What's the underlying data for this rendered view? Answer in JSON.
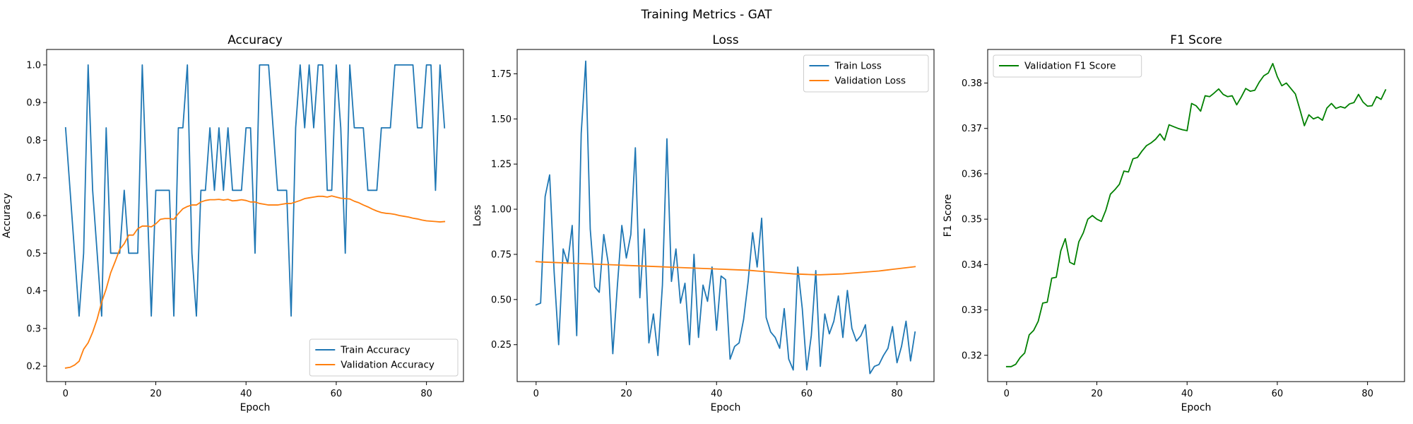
{
  "figure": {
    "title": "Training Metrics - GAT"
  },
  "chart_data": [
    {
      "type": "line",
      "title": "Accuracy",
      "xlabel": "Epoch",
      "ylabel": "Accuracy",
      "xlim": [
        -4.2,
        88.2
      ],
      "ylim": [
        0.159,
        1.041
      ],
      "xticks": [
        0,
        20,
        40,
        60,
        80
      ],
      "yticks": [
        0.2,
        0.3,
        0.4,
        0.5,
        0.6,
        0.7,
        0.8,
        0.9,
        1.0
      ],
      "ytick_labels": [
        "0.2",
        "0.3",
        "0.4",
        "0.5",
        "0.6",
        "0.7",
        "0.8",
        "0.9",
        "1.0"
      ],
      "legend_position": "lower right",
      "series": [
        {
          "name": "Train Accuracy",
          "color": "#1f77b4",
          "values": [
            0.833,
            0.667,
            0.5,
            0.333,
            0.5,
            1.0,
            0.667,
            0.5,
            0.333,
            0.833,
            0.5,
            0.5,
            0.5,
            0.667,
            0.5,
            0.5,
            0.5,
            1.0,
            0.667,
            0.333,
            0.667,
            0.667,
            0.667,
            0.667,
            0.333,
            0.833,
            0.833,
            1.0,
            0.5,
            0.333,
            0.667,
            0.667,
            0.833,
            0.667,
            0.833,
            0.667,
            0.833,
            0.667,
            0.667,
            0.667,
            0.833,
            0.833,
            0.5,
            1.0,
            1.0,
            1.0,
            0.833,
            0.667,
            0.667,
            0.667,
            0.333,
            0.833,
            1.0,
            0.833,
            1.0,
            0.833,
            1.0,
            1.0,
            0.667,
            0.667,
            1.0,
            0.833,
            0.5,
            1.0,
            0.833,
            0.833,
            0.833,
            0.667,
            0.667,
            0.667,
            0.833,
            0.833,
            0.833,
            1.0,
            1.0,
            1.0,
            1.0,
            1.0,
            0.833,
            0.833,
            1.0,
            1.0,
            0.667,
            1.0,
            0.833
          ]
        },
        {
          "name": "Validation Accuracy",
          "color": "#ff7f0e",
          "values": [
            0.195,
            0.197,
            0.203,
            0.213,
            0.245,
            0.262,
            0.29,
            0.325,
            0.37,
            0.405,
            0.448,
            0.478,
            0.51,
            0.525,
            0.548,
            0.548,
            0.565,
            0.572,
            0.572,
            0.57,
            0.578,
            0.59,
            0.592,
            0.592,
            0.59,
            0.605,
            0.618,
            0.624,
            0.628,
            0.628,
            0.636,
            0.64,
            0.642,
            0.642,
            0.643,
            0.641,
            0.643,
            0.639,
            0.64,
            0.642,
            0.64,
            0.636,
            0.636,
            0.632,
            0.63,
            0.628,
            0.628,
            0.628,
            0.63,
            0.632,
            0.632,
            0.636,
            0.64,
            0.645,
            0.647,
            0.649,
            0.651,
            0.651,
            0.649,
            0.652,
            0.649,
            0.646,
            0.645,
            0.644,
            0.638,
            0.634,
            0.628,
            0.623,
            0.617,
            0.612,
            0.608,
            0.606,
            0.605,
            0.603,
            0.6,
            0.598,
            0.596,
            0.593,
            0.591,
            0.588,
            0.586,
            0.585,
            0.584,
            0.583,
            0.584
          ]
        }
      ]
    },
    {
      "type": "line",
      "title": "Loss",
      "xlabel": "Epoch",
      "ylabel": "Loss",
      "xlim": [
        -4.2,
        88.2
      ],
      "ylim": [
        0.0455,
        1.8845
      ],
      "xticks": [
        0,
        20,
        40,
        60,
        80
      ],
      "yticks": [
        0.25,
        0.5,
        0.75,
        1.0,
        1.25,
        1.5,
        1.75
      ],
      "ytick_labels": [
        "0.25",
        "0.50",
        "0.75",
        "1.00",
        "1.25",
        "1.50",
        "1.75"
      ],
      "legend_position": "upper right",
      "series": [
        {
          "name": "Train Loss",
          "color": "#1f77b4",
          "values": [
            0.47,
            0.48,
            1.07,
            1.19,
            0.65,
            0.25,
            0.78,
            0.7,
            0.91,
            0.3,
            1.42,
            1.82,
            0.89,
            0.57,
            0.54,
            0.86,
            0.7,
            0.2,
            0.57,
            0.91,
            0.73,
            0.86,
            1.34,
            0.51,
            0.89,
            0.26,
            0.42,
            0.19,
            0.58,
            1.39,
            0.6,
            0.78,
            0.48,
            0.59,
            0.25,
            0.75,
            0.29,
            0.58,
            0.49,
            0.68,
            0.33,
            0.63,
            0.61,
            0.17,
            0.24,
            0.26,
            0.39,
            0.6,
            0.87,
            0.68,
            0.95,
            0.4,
            0.32,
            0.29,
            0.23,
            0.45,
            0.17,
            0.11,
            0.68,
            0.45,
            0.11,
            0.3,
            0.66,
            0.13,
            0.42,
            0.31,
            0.38,
            0.52,
            0.29,
            0.55,
            0.34,
            0.27,
            0.3,
            0.36,
            0.09,
            0.13,
            0.14,
            0.19,
            0.23,
            0.35,
            0.15,
            0.24,
            0.38,
            0.16,
            0.32
          ]
        },
        {
          "name": "Validation Loss",
          "color": "#ff7f0e",
          "values": [
            0.71,
            0.708,
            0.707,
            0.706,
            0.705,
            0.704,
            0.703,
            0.702,
            0.701,
            0.7,
            0.699,
            0.698,
            0.697,
            0.696,
            0.695,
            0.694,
            0.693,
            0.692,
            0.691,
            0.69,
            0.689,
            0.688,
            0.687,
            0.686,
            0.685,
            0.684,
            0.683,
            0.682,
            0.681,
            0.68,
            0.679,
            0.678,
            0.677,
            0.676,
            0.675,
            0.674,
            0.673,
            0.672,
            0.671,
            0.67,
            0.669,
            0.668,
            0.667,
            0.666,
            0.665,
            0.664,
            0.663,
            0.662,
            0.66,
            0.658,
            0.656,
            0.654,
            0.652,
            0.65,
            0.648,
            0.646,
            0.644,
            0.642,
            0.641,
            0.64,
            0.639,
            0.638,
            0.637,
            0.637,
            0.638,
            0.639,
            0.64,
            0.641,
            0.642,
            0.644,
            0.646,
            0.648,
            0.65,
            0.652,
            0.654,
            0.656,
            0.658,
            0.661,
            0.664,
            0.667,
            0.67,
            0.673,
            0.676,
            0.679,
            0.682
          ]
        }
      ]
    },
    {
      "type": "line",
      "title": "F1 Score",
      "xlabel": "Epoch",
      "ylabel": "F1 Score",
      "xlim": [
        -4.2,
        88.2
      ],
      "ylim": [
        0.3142,
        0.3874
      ],
      "xticks": [
        0,
        20,
        40,
        60,
        80
      ],
      "yticks": [
        0.32,
        0.33,
        0.34,
        0.35,
        0.36,
        0.37,
        0.38
      ],
      "ytick_labels": [
        "0.32",
        "0.33",
        "0.34",
        "0.35",
        "0.36",
        "0.37",
        "0.38"
      ],
      "legend_position": "upper left",
      "series": [
        {
          "name": "Validation F1 Score",
          "color": "#008000",
          "values": [
            0.3175,
            0.3175,
            0.318,
            0.3195,
            0.3205,
            0.3245,
            0.3255,
            0.3275,
            0.3315,
            0.3317,
            0.337,
            0.3372,
            0.343,
            0.3457,
            0.3405,
            0.34,
            0.345,
            0.347,
            0.35,
            0.3508,
            0.35,
            0.3495,
            0.352,
            0.3555,
            0.3565,
            0.3577,
            0.3606,
            0.3604,
            0.3633,
            0.3636,
            0.365,
            0.3662,
            0.3668,
            0.3676,
            0.3688,
            0.3674,
            0.3708,
            0.3704,
            0.37,
            0.3697,
            0.3695,
            0.3755,
            0.375,
            0.3738,
            0.3772,
            0.377,
            0.3778,
            0.3787,
            0.3775,
            0.377,
            0.3772,
            0.3752,
            0.3769,
            0.3788,
            0.3782,
            0.3784,
            0.3802,
            0.3816,
            0.3822,
            0.3843,
            0.3814,
            0.3794,
            0.38,
            0.3788,
            0.3776,
            0.3742,
            0.3706,
            0.373,
            0.3721,
            0.3725,
            0.3718,
            0.3745,
            0.3755,
            0.3744,
            0.3748,
            0.3745,
            0.3754,
            0.3757,
            0.3775,
            0.3758,
            0.3749,
            0.375,
            0.377,
            0.3764,
            0.3785
          ]
        }
      ]
    }
  ]
}
